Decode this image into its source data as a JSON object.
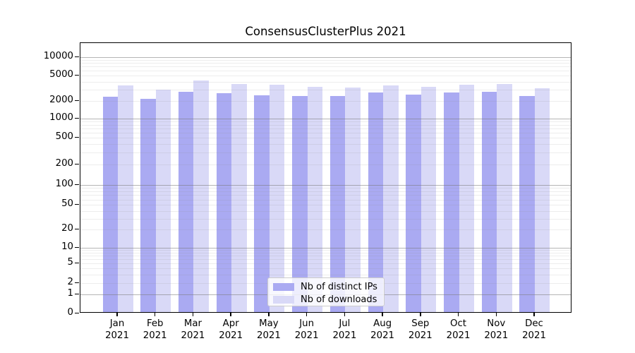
{
  "title": "ConsensusClusterPlus 2021",
  "colors": {
    "distinct_ips_bar": "#aaaaf2",
    "downloads_bar": "#d9d9f7",
    "spine": "#000000",
    "major_grid": "#787878",
    "minor_grid": "#8c8c8c",
    "legend_border": "#cccccc"
  },
  "legend": {
    "items": [
      {
        "label": "Nb of distinct IPs",
        "color": "#aaaaf2"
      },
      {
        "label": "Nb of downloads",
        "color": "#d9d9f7"
      }
    ]
  },
  "chart_data": {
    "type": "bar",
    "title": "ConsensusClusterPlus 2021",
    "categories": [
      "Jan 2021",
      "Feb 2021",
      "Mar 2021",
      "Apr 2021",
      "May 2021",
      "Jun 2021",
      "Jul 2021",
      "Aug 2021",
      "Sep 2021",
      "Oct 2021",
      "Nov 2021",
      "Dec 2021"
    ],
    "series": [
      {
        "name": "Nb of distinct IPs",
        "color": "#aaaaf2",
        "values": [
          2200,
          2050,
          2650,
          2500,
          2350,
          2300,
          2250,
          2550,
          2400,
          2550,
          2650,
          2300
        ]
      },
      {
        "name": "Nb of downloads",
        "color": "#d9d9f7",
        "values": [
          3300,
          2850,
          4000,
          3500,
          3450,
          3170,
          3080,
          3350,
          3150,
          3400,
          3500,
          3000
        ]
      }
    ],
    "xlabel": "",
    "ylabel": "",
    "yscale": "log (with 0 baseline)",
    "yticks": [
      0,
      1,
      2,
      5,
      10,
      20,
      50,
      100,
      200,
      500,
      1000,
      2000,
      5000,
      10000
    ],
    "ylim": [
      0,
      17000
    ],
    "grid": "horizontal major and minor gridlines drawn over bars",
    "legend_position": "lower center"
  }
}
